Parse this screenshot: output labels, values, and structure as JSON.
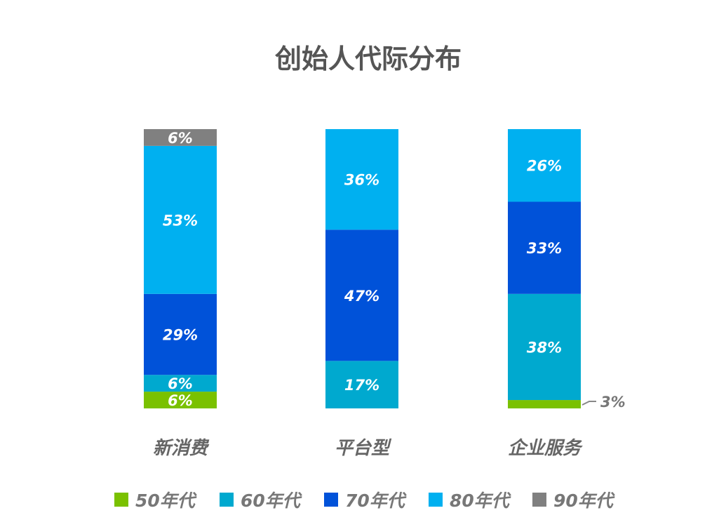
{
  "chart_data": {
    "type": "bar",
    "stacked": true,
    "title": "创始人代际分布",
    "categories": [
      "新消费",
      "平台型",
      "企业服务"
    ],
    "series": [
      {
        "name": "50年代",
        "color": "#7ac100",
        "values": [
          6,
          0,
          3
        ]
      },
      {
        "name": "60年代",
        "color": "#00a9cf",
        "values": [
          6,
          17,
          38
        ]
      },
      {
        "name": "70年代",
        "color": "#0052d9",
        "values": [
          29,
          47,
          33
        ]
      },
      {
        "name": "80年代",
        "color": "#00b0f0",
        "values": [
          53,
          36,
          26
        ]
      },
      {
        "name": "90年代",
        "color": "#808080",
        "values": [
          6,
          0,
          0
        ]
      }
    ],
    "ylim": [
      0,
      100
    ],
    "unit": "%",
    "legend": "bottom",
    "grid": false,
    "xlabel": "",
    "ylabel": ""
  }
}
